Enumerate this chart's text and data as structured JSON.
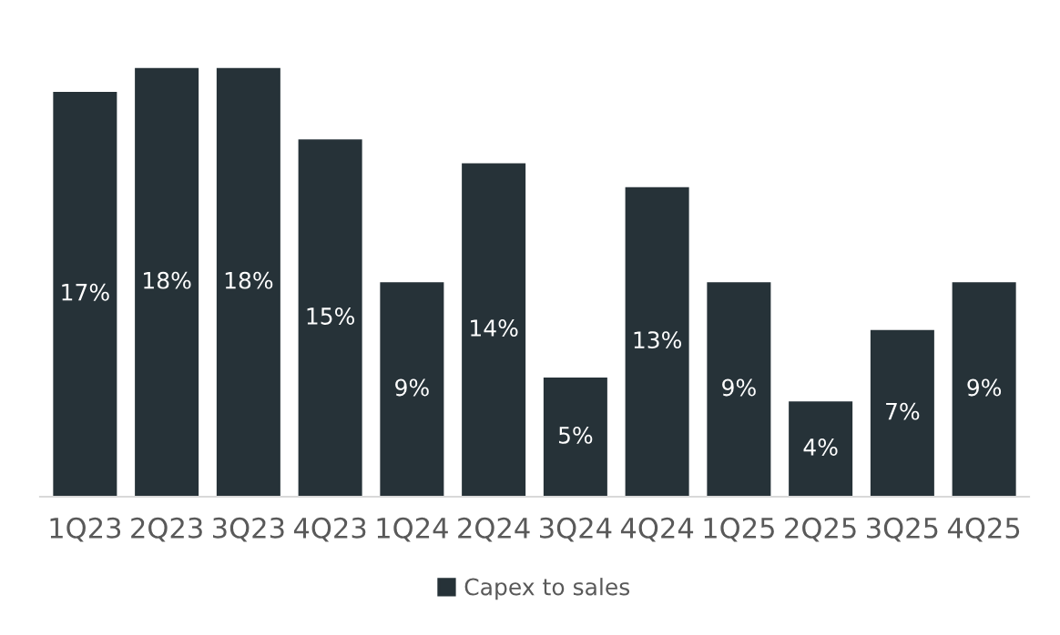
{
  "chart_data": {
    "type": "bar",
    "categories": [
      "1Q23",
      "2Q23",
      "3Q23",
      "4Q23",
      "1Q24",
      "2Q24",
      "3Q24",
      "4Q24",
      "1Q25",
      "2Q25",
      "3Q25",
      "4Q25"
    ],
    "series": [
      {
        "name": "Capex to sales",
        "color": "#263238",
        "values": [
          17,
          18,
          18,
          15,
          9,
          14,
          5,
          13,
          9,
          4,
          7,
          9
        ],
        "value_labels": [
          "17%",
          "18%",
          "18%",
          "15%",
          "9%",
          "14%",
          "5%",
          "13%",
          "9%",
          "4%",
          "7%",
          "9%"
        ]
      }
    ],
    "legend": "bottom",
    "grid": false
  }
}
